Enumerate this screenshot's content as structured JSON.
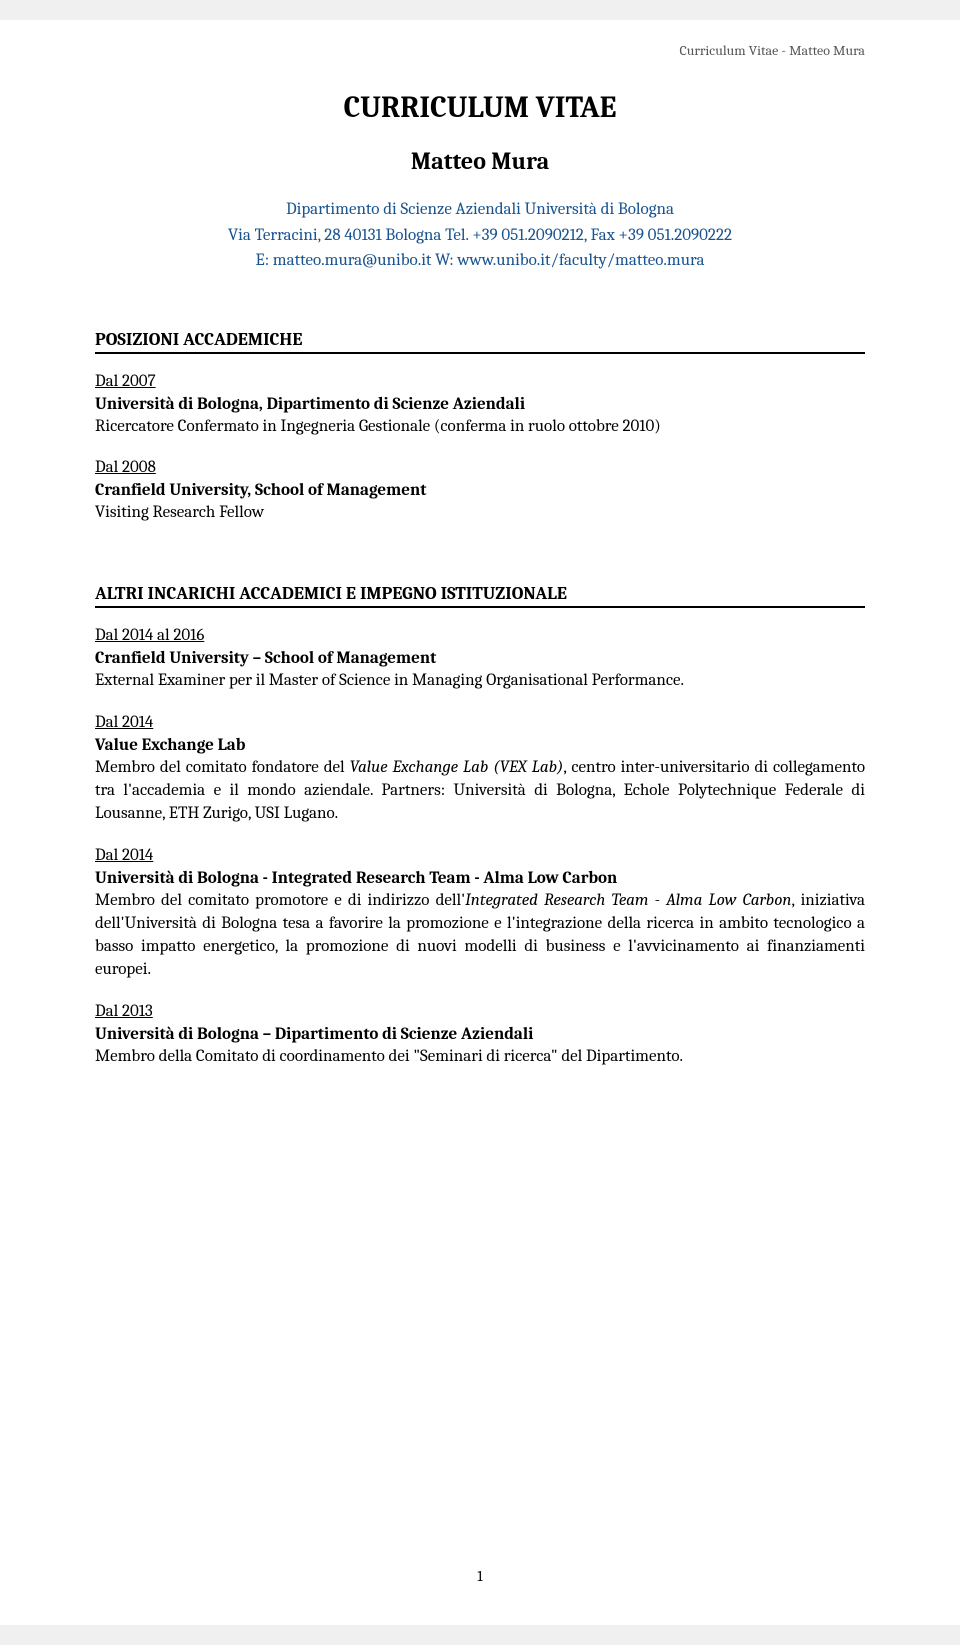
{
  "header": {
    "right_text": "Curriculum Vitae - Matteo Mura"
  },
  "title": "CURRICULUM VITAE",
  "name": "Matteo Mura",
  "contact": {
    "line1": "Dipartimento di Scienze Aziendali Università di Bologna",
    "line2": "Via Terracini, 28 40131 Bologna Tel. +39 051.2090212, Fax +39 051.2090222",
    "line3": "E: matteo.mura@unibo.it W: www.unibo.it/faculty/matteo.mura"
  },
  "sections": {
    "posizioni": {
      "heading": "POSIZIONI ACCADEMICHE",
      "entries": [
        {
          "date": "Dal 2007",
          "org": "Università di Bologna, Dipartimento di Scienze Aziendali",
          "desc": "Ricercatore Confermato in Ingegneria Gestionale (conferma in ruolo ottobre 2010)"
        },
        {
          "date": "Dal 2008",
          "org": "Cranfield University, School of Management",
          "desc": "Visiting Research Fellow"
        }
      ]
    },
    "altri": {
      "heading": "ALTRI INCARICHI ACCADEMICI E IMPEGNO ISTITUZIONALE",
      "entries": [
        {
          "date": "Dal 2014 al 2016",
          "org": "Cranfield University – School of Management",
          "desc": "External Examiner per il Master of Science in Managing Organisational Performance."
        },
        {
          "date": "Dal 2014",
          "org": "Value Exchange Lab",
          "desc_pre": "Membro del comitato fondatore del ",
          "desc_italic": "Value Exchange Lab (VEX Lab)",
          "desc_post": ", centro inter-universitario di collegamento tra l'accademia e il mondo aziendale. Partners: Università di Bologna, Echole Polytechnique Federale di Lousanne, ETH Zurigo, USI Lugano."
        },
        {
          "date": "Dal 2014",
          "org": "Università di Bologna - Integrated Research Team - Alma Low Carbon",
          "desc_pre": "Membro del comitato promotore e di indirizzo dell'",
          "desc_italic": "Integrated Research Team - Alma Low Carbon",
          "desc_post": ", iniziativa dell'Università di Bologna tesa a favorire la promozione e l'integrazione della ricerca in ambito tecnologico a basso impatto energetico, la promozione di nuovi modelli di business e l'avvicinamento ai finanziamenti europei."
        },
        {
          "date": "Dal 2013",
          "org": "Università di Bologna – Dipartimento di Scienze Aziendali",
          "desc": "Membro della Comitato di coordinamento dei \"Seminari di ricerca\" del Dipartimento."
        }
      ]
    }
  },
  "page_number": "1"
}
